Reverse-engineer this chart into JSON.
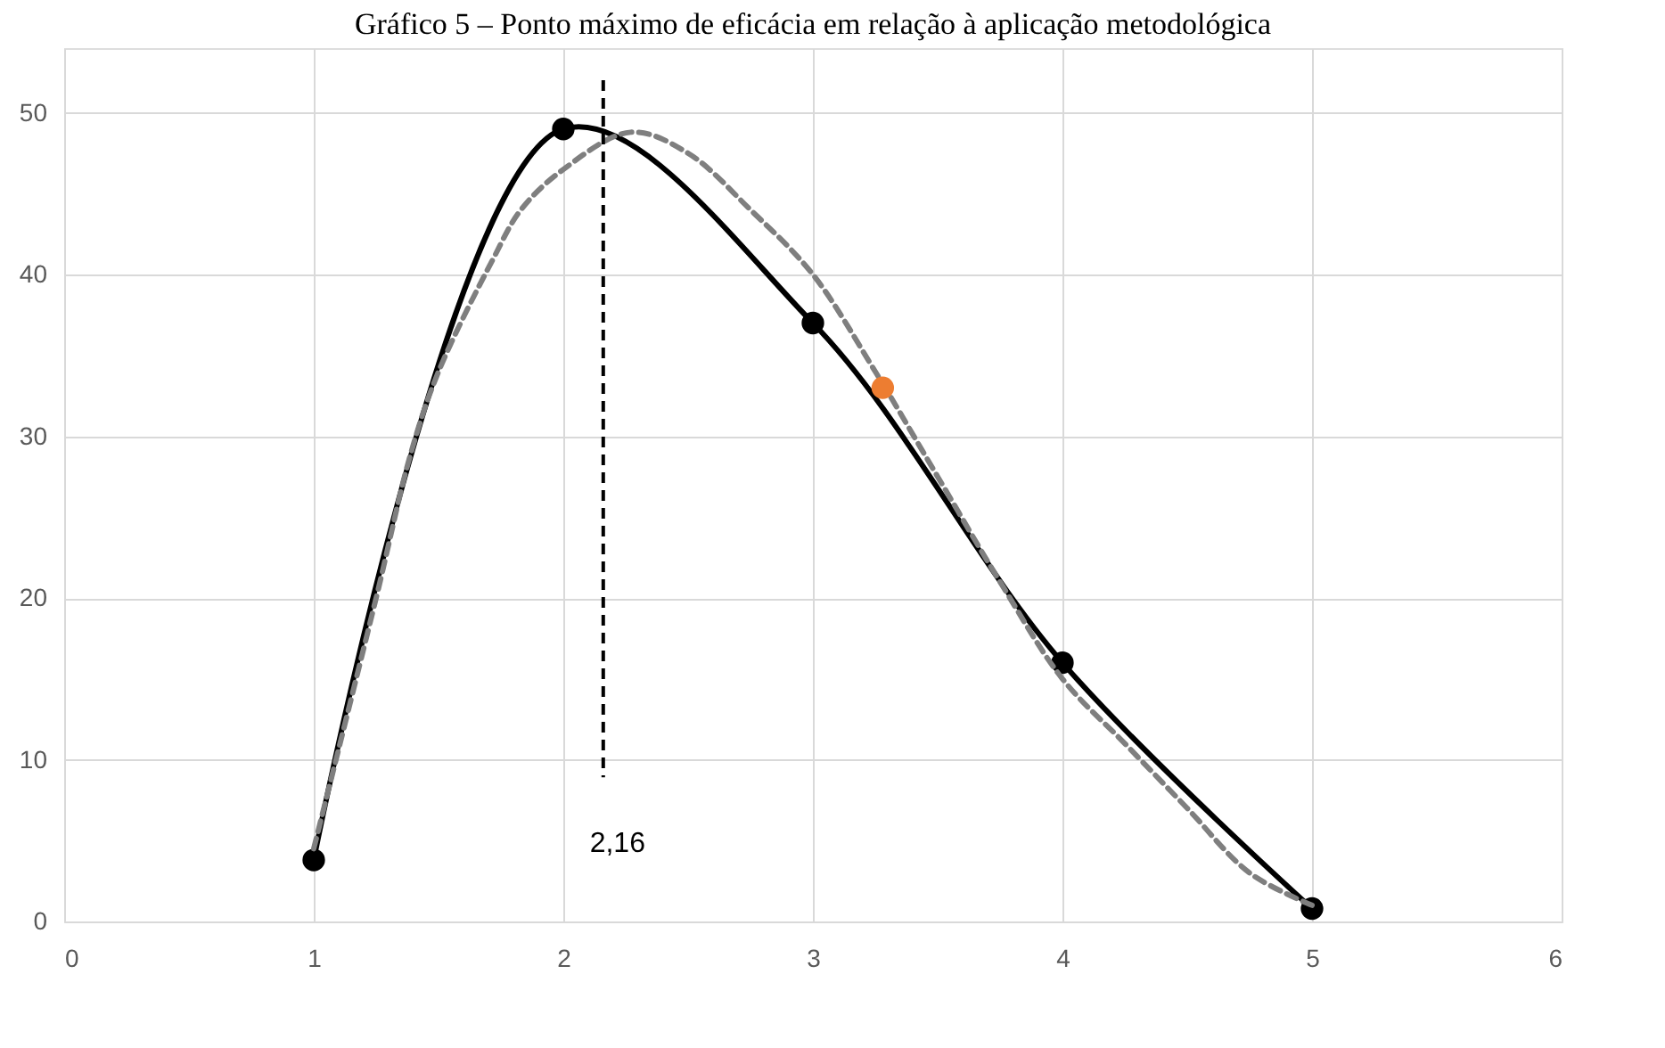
{
  "chart_data": {
    "type": "line",
    "title": "Gráfico 5 – Ponto máximo de eficácia em relação à aplicação metodológica",
    "xlim": [
      0,
      6
    ],
    "xticks": [
      0,
      1,
      2,
      3,
      4,
      5,
      6
    ],
    "ylim": [
      0,
      54
    ],
    "yticks": [
      0,
      10,
      20,
      30,
      40,
      50
    ],
    "grid": true,
    "series": [
      {
        "color": "#000000",
        "marker": "circle",
        "line_style": "solid",
        "x": [
          1,
          2,
          3,
          4,
          5
        ],
        "values": [
          3.8,
          49,
          37,
          16,
          0.8
        ]
      },
      {
        "color": "#7f7f7f",
        "marker": "none",
        "line_style": "dashed",
        "x": [
          1,
          1.25,
          1.39,
          1.5,
          1.72,
          1.83,
          2,
          2.27,
          2.5,
          2.75,
          3,
          3.25,
          3.5,
          3.75,
          4,
          4.25,
          4.5,
          4.75,
          5
        ],
        "values": [
          4.5,
          20,
          29,
          34,
          41,
          44,
          46.5,
          48.8,
          47.5,
          44,
          40,
          34,
          27.5,
          21,
          15,
          11,
          7,
          3,
          1
        ]
      },
      {
        "type": "scatter",
        "color": "#ed7d31",
        "marker": "circle",
        "x": [
          3.28
        ],
        "values": [
          33
        ]
      }
    ],
    "ref_lines": [
      {
        "axis": "x",
        "value": 2.16,
        "label": "2,16",
        "color": "#000000",
        "line_style": "dashed"
      }
    ]
  }
}
